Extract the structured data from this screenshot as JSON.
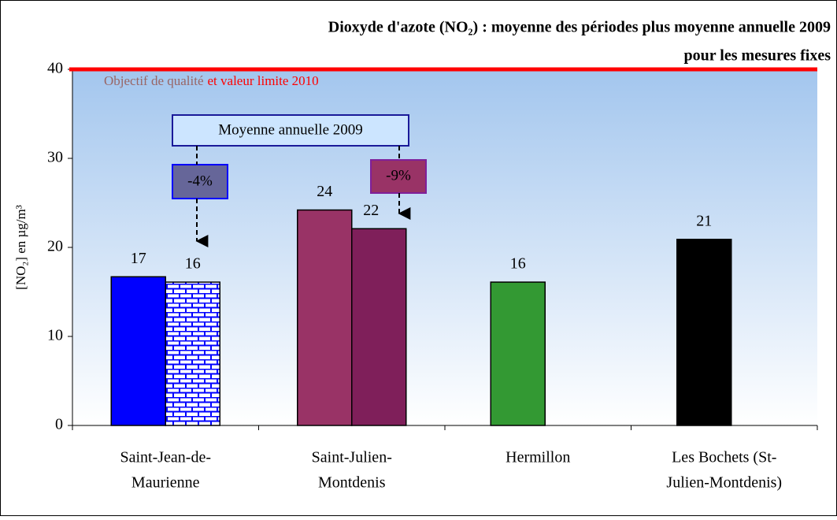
{
  "chart_data": {
    "type": "bar",
    "title": [
      "Dioxyde d'azote (NO₂) : moyenne des périodes plus moyenne annuelle 2009",
      "pour les mesures fixes"
    ],
    "y_label": "[NO₂] en µg/m³",
    "categories": [
      [
        "Saint-Jean-de-",
        "Maurienne"
      ],
      [
        "Saint-Julien-",
        "Montdenis"
      ],
      [
        "Hermillon"
      ],
      [
        "Les Bochets (St-",
        "Julien-Montdenis)"
      ]
    ],
    "series": [
      {
        "colors": [
          "#0000ff",
          "#993366",
          "#339933",
          "#000000"
        ],
        "values": [
          16.7,
          24.2,
          16.1,
          20.9
        ],
        "value_labels": [
          "17",
          "24",
          "16",
          "21"
        ]
      },
      {
        "colors": [
          "brick",
          "#7f1f5a",
          null,
          null
        ],
        "values": [
          16.1,
          22.1,
          null,
          null
        ],
        "value_labels": [
          "16",
          "22",
          null,
          null
        ]
      }
    ],
    "ylim": [
      0,
      40
    ],
    "yticks": [
      0,
      10,
      20,
      30,
      40
    ],
    "reference_line": {
      "value": 40,
      "color": "#ff0000",
      "labels": [
        "Objectif de qualité",
        "et valeur limite 2010"
      ],
      "label_colors": [
        "#996666",
        "#ff0000"
      ]
    },
    "annual_box": "Moyenne annuelle 2009",
    "changes": [
      "-4%",
      "-9%"
    ]
  }
}
